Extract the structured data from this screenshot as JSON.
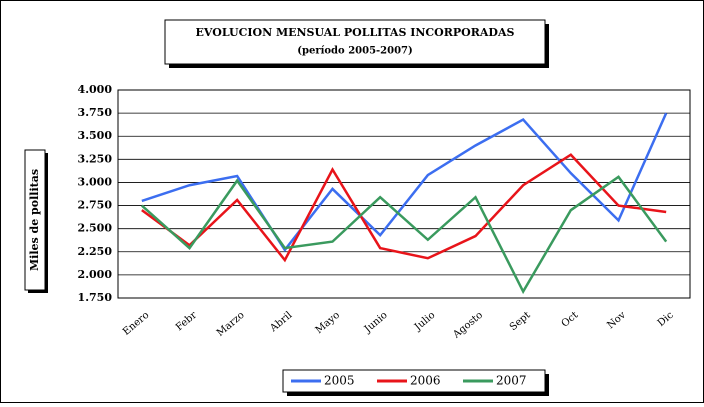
{
  "chart_data": {
    "type": "line",
    "title": "EVOLUCION MENSUAL POLLITAS INCORPORADAS",
    "subtitle": "(período 2005-2007)",
    "y_label": "Miles de pollitas",
    "categories": [
      "Enero",
      "Febr",
      "Marzo",
      "Abril",
      "Mayo",
      "Junio",
      "Julio",
      "Agosto",
      "Sept",
      "Oct",
      "Nov",
      "Dic"
    ],
    "series": [
      {
        "name": "2005",
        "color": "#3c6ef0",
        "values": [
          2.8,
          2.97,
          3.07,
          2.27,
          2.93,
          2.43,
          3.08,
          3.4,
          3.68,
          3.1,
          2.59,
          3.75
        ]
      },
      {
        "name": "2006",
        "color": "#e8141a",
        "values": [
          2.7,
          2.32,
          2.81,
          2.16,
          3.14,
          2.29,
          2.18,
          2.42,
          2.97,
          3.3,
          2.75,
          2.68
        ]
      },
      {
        "name": "2007",
        "color": "#3a9a5e",
        "values": [
          2.75,
          2.29,
          3.02,
          2.29,
          2.36,
          2.84,
          2.38,
          2.84,
          1.82,
          2.7,
          3.06,
          2.36
        ]
      }
    ],
    "ylim": [
      1.75,
      4.0
    ],
    "yticks": [
      {
        "value": 1.75,
        "label": "1.750"
      },
      {
        "value": 2.0,
        "label": "2.000"
      },
      {
        "value": 2.25,
        "label": "2.250"
      },
      {
        "value": 2.5,
        "label": "2.500"
      },
      {
        "value": 2.75,
        "label": "2.750"
      },
      {
        "value": 3.0,
        "label": "3.000"
      },
      {
        "value": 3.25,
        "label": "3.250"
      },
      {
        "value": 3.5,
        "label": "3.500"
      },
      {
        "value": 3.75,
        "label": "3.750"
      },
      {
        "value": 4.0,
        "label": "4.000"
      }
    ],
    "grid": true,
    "legend": "bottom"
  }
}
